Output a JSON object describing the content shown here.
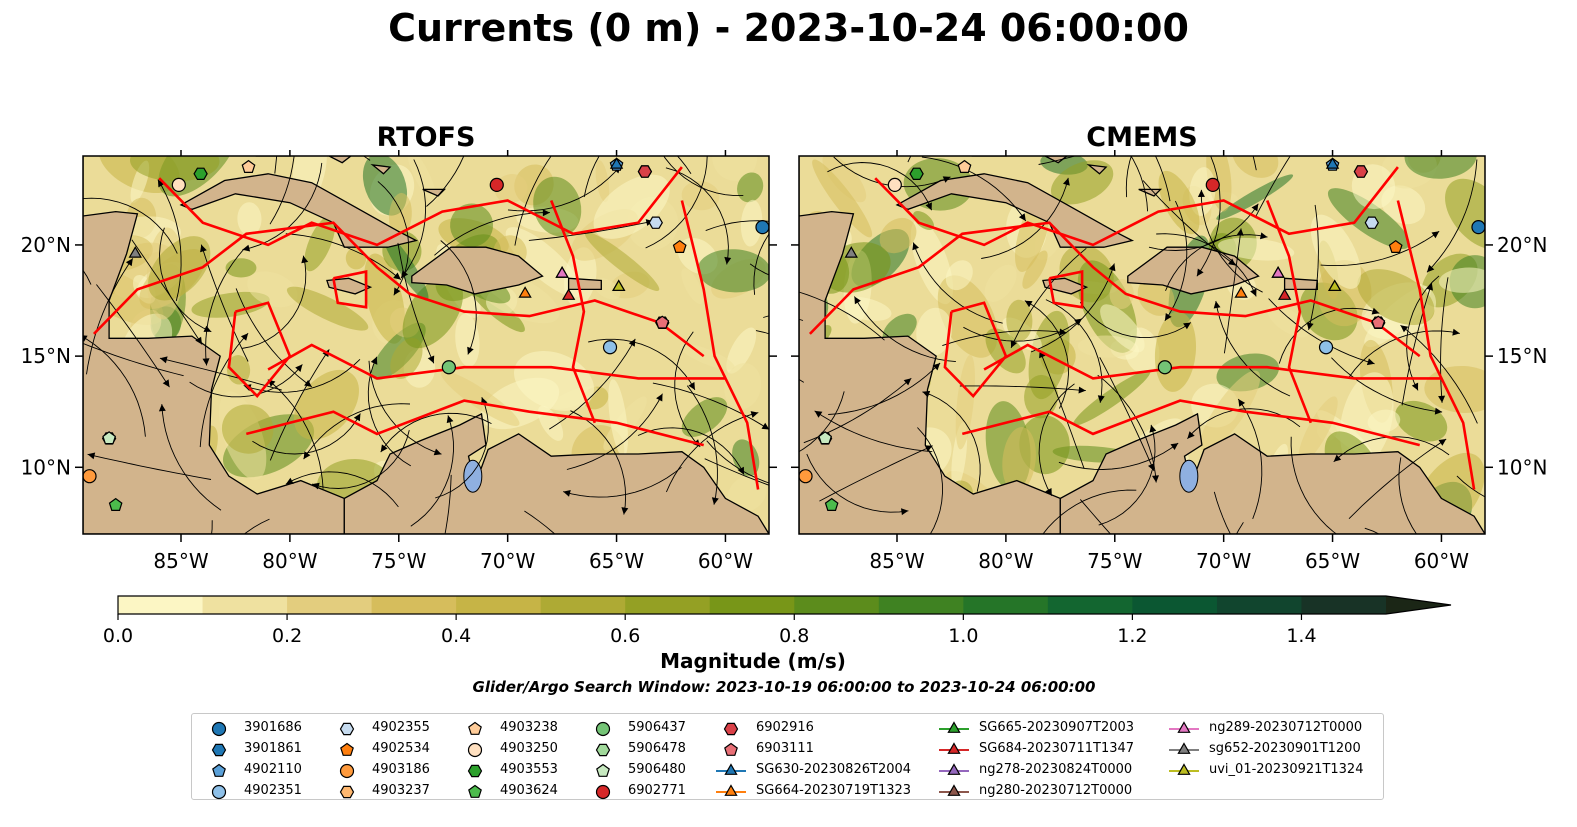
{
  "title": "Currents (0 m) - 2023-10-24 06:00:00",
  "panels": [
    {
      "id": "rtofs",
      "title": "RTOFS"
    },
    {
      "id": "cmems",
      "title": "CMEMS"
    }
  ],
  "map": {
    "lon_range": [
      -89.5,
      -58
    ],
    "lat_range": [
      7,
      24
    ],
    "lon_ticks": [
      "85°W",
      "80°W",
      "75°W",
      "70°W",
      "65°W",
      "60°W"
    ],
    "lat_ticks": [
      "20°N",
      "15°N",
      "10°N"
    ],
    "colors": {
      "land": "#d2b48c",
      "boundary": "#ff0000",
      "lake": "#8fb0e0",
      "streamline": "#000000"
    }
  },
  "colorbar": {
    "label": "Magnitude (m/s)",
    "ticks": [
      "0.0",
      "0.2",
      "0.4",
      "0.6",
      "0.8",
      "1.0",
      "1.2",
      "1.4"
    ],
    "colors": [
      "#fcf6c4",
      "#efe1a0",
      "#e3cd7e",
      "#d6bd5c",
      "#c6b446",
      "#aeaa34",
      "#94a024",
      "#789618",
      "#5c8c1c",
      "#3f8222",
      "#257528",
      "#136630",
      "#0b5732",
      "#11452e",
      "#183326",
      "#1b2616"
    ]
  },
  "search_window": "Glider/Argo Search Window: 2023-10-19 06:00:00 to 2023-10-24 06:00:00",
  "chart_data": {
    "type": "heatmap",
    "title": "Currents (0 m) - 2023-10-24 06:00:00",
    "variable": "Magnitude (m/s)",
    "scale_range": [
      0.0,
      1.5
    ],
    "panels": [
      "RTOFS",
      "CMEMS"
    ],
    "markers": [
      {
        "name": "3901686",
        "lon": -58.3,
        "lat": 20.8
      },
      {
        "name": "3901861",
        "lon": -63.7,
        "lat": 23.3
      },
      {
        "name": "4902110",
        "lon": -65.0,
        "lat": 23.6
      },
      {
        "name": "4902351",
        "lon": -65.3,
        "lat": 15.4
      },
      {
        "name": "4902355",
        "lon": -63.2,
        "lat": 21.0
      },
      {
        "name": "4902534",
        "lon": -62.1,
        "lat": 19.9
      },
      {
        "name": "4903186",
        "lon": -89.2,
        "lat": 9.6
      },
      {
        "name": "4903237",
        "lon": -62.9,
        "lat": 16.5
      },
      {
        "name": "4903238",
        "lon": -81.9,
        "lat": 23.5
      },
      {
        "name": "4903250",
        "lon": -85.1,
        "lat": 22.7
      },
      {
        "name": "4903553",
        "lon": -84.1,
        "lat": 23.2
      },
      {
        "name": "4903624",
        "lon": -88.0,
        "lat": 8.3
      },
      {
        "name": "5906437",
        "lon": -72.7,
        "lat": 14.5
      },
      {
        "name": "5906478",
        "lon": -88.3,
        "lat": 11.3
      },
      {
        "name": "5906480",
        "lon": -88.3,
        "lat": 11.3
      },
      {
        "name": "6902771",
        "lon": -70.5,
        "lat": 22.7
      },
      {
        "name": "6902916",
        "lon": -63.7,
        "lat": 23.3
      },
      {
        "name": "6903111",
        "lon": -62.9,
        "lat": 16.5
      },
      {
        "name": "SG630-20230826T2004",
        "lon": -65.0,
        "lat": 23.6
      },
      {
        "name": "SG664-20230719T1323",
        "lon": -69.2,
        "lat": 17.8
      },
      {
        "name": "SG665-20230907T2003",
        "lon": -64.9,
        "lat": 18.1
      },
      {
        "name": "SG684-20230711T1347",
        "lon": -67.2,
        "lat": 17.7
      },
      {
        "name": "ng278-20230824T0000",
        "lon": -67.5,
        "lat": 18.7
      },
      {
        "name": "ng280-20230712T0000",
        "lon": -67.5,
        "lat": 18.7
      },
      {
        "name": "ng289-20230712T0000",
        "lon": -67.5,
        "lat": 18.7
      },
      {
        "name": "sg652-20230901T1200",
        "lon": -87.1,
        "lat": 19.6
      },
      {
        "name": "uvi_01-20230921T1324",
        "lon": -64.9,
        "lat": 18.1
      }
    ]
  },
  "legend": {
    "columns": [
      [
        {
          "label": "3901686",
          "shape": "circle",
          "color": "#1f77b4"
        },
        {
          "label": "3901861",
          "shape": "hexagon",
          "color": "#1f77b4"
        },
        {
          "label": "4902110",
          "shape": "pentagon",
          "color": "#5aa0d8"
        },
        {
          "label": "4902351",
          "shape": "circle",
          "color": "#8ec0e8"
        }
      ],
      [
        {
          "label": "4902355",
          "shape": "hexagon",
          "color": "#c6dbef"
        },
        {
          "label": "4902534",
          "shape": "pentagon",
          "color": "#ff7f0e"
        },
        {
          "label": "4903186",
          "shape": "circle",
          "color": "#ff9a3c"
        },
        {
          "label": "4903237",
          "shape": "hexagon",
          "color": "#ffb870"
        }
      ],
      [
        {
          "label": "4903238",
          "shape": "pentagon",
          "color": "#ffcc99"
        },
        {
          "label": "4903250",
          "shape": "circle",
          "color": "#ffe0c0"
        },
        {
          "label": "4903553",
          "shape": "hexagon",
          "color": "#2ca02c"
        },
        {
          "label": "4903624",
          "shape": "pentagon",
          "color": "#4cbb4c"
        }
      ],
      [
        {
          "label": "5906437",
          "shape": "circle",
          "color": "#74c476"
        },
        {
          "label": "5906478",
          "shape": "hexagon",
          "color": "#a1d99b"
        },
        {
          "label": "5906480",
          "shape": "pentagon",
          "color": "#c7e9c0"
        },
        {
          "label": "6902771",
          "shape": "circle",
          "color": "#d62728"
        }
      ],
      [
        {
          "label": "6902916",
          "shape": "hexagon",
          "color": "#d94148"
        },
        {
          "label": "6903111",
          "shape": "pentagon",
          "color": "#e86f76"
        },
        {
          "label": "SG630-20230826T2004",
          "shape": "triangle",
          "color": "#1f77b4"
        },
        {
          "label": "SG664-20230719T1323",
          "shape": "triangle",
          "color": "#ff7f0e"
        }
      ],
      [
        {
          "label": "SG665-20230907T2003",
          "shape": "triangle",
          "color": "#2ca02c"
        },
        {
          "label": "SG684-20230711T1347",
          "shape": "triangle",
          "color": "#d62728"
        },
        {
          "label": "ng278-20230824T0000",
          "shape": "triangle",
          "color": "#9467bd"
        },
        {
          "label": "ng280-20230712T0000",
          "shape": "triangle",
          "color": "#8c564b"
        }
      ],
      [
        {
          "label": "ng289-20230712T0000",
          "shape": "triangle",
          "color": "#e377c2"
        },
        {
          "label": "sg652-20230901T1200",
          "shape": "triangle",
          "color": "#7f7f7f"
        },
        {
          "label": "uvi_01-20230921T1324",
          "shape": "triangle",
          "color": "#bcbd22"
        }
      ]
    ]
  }
}
